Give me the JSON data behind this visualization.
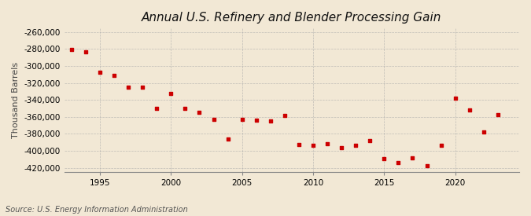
{
  "title": "Annual U.S. Refinery and Blender Processing Gain",
  "ylabel": "Thousand Barrels",
  "source": "Source: U.S. Energy Information Administration",
  "background_color": "#f2e8d5",
  "plot_bg_color": "#f2e8d5",
  "marker_color": "#cc0000",
  "years": [
    1993,
    1994,
    1995,
    1996,
    1997,
    1998,
    1999,
    2000,
    2001,
    2002,
    2003,
    2004,
    2005,
    2006,
    2007,
    2008,
    2009,
    2010,
    2011,
    2012,
    2013,
    2014,
    2015,
    2016,
    2017,
    2018,
    2019,
    2020,
    2021,
    2022,
    2023
  ],
  "values": [
    -281000,
    -283000,
    -307000,
    -311000,
    -325000,
    -325000,
    -350000,
    -332000,
    -350000,
    -355000,
    -363000,
    -386000,
    -363000,
    -364000,
    -365000,
    -358000,
    -393000,
    -394000,
    -392000,
    -396000,
    -394000,
    -388000,
    -409000,
    -414000,
    -408000,
    -418000,
    -394000,
    -338000,
    -352000,
    -378000,
    -357000
  ],
  "ylim": [
    -425000,
    -255000
  ],
  "yticks": [
    -420000,
    -400000,
    -380000,
    -360000,
    -340000,
    -320000,
    -300000,
    -280000,
    -260000
  ],
  "xticks": [
    1995,
    2000,
    2005,
    2010,
    2015,
    2020
  ],
  "xlim": [
    1992.5,
    2024.5
  ],
  "grid_color": "#aaaaaa",
  "title_fontsize": 11,
  "label_fontsize": 8,
  "tick_fontsize": 7.5,
  "source_fontsize": 7,
  "marker_size": 6
}
